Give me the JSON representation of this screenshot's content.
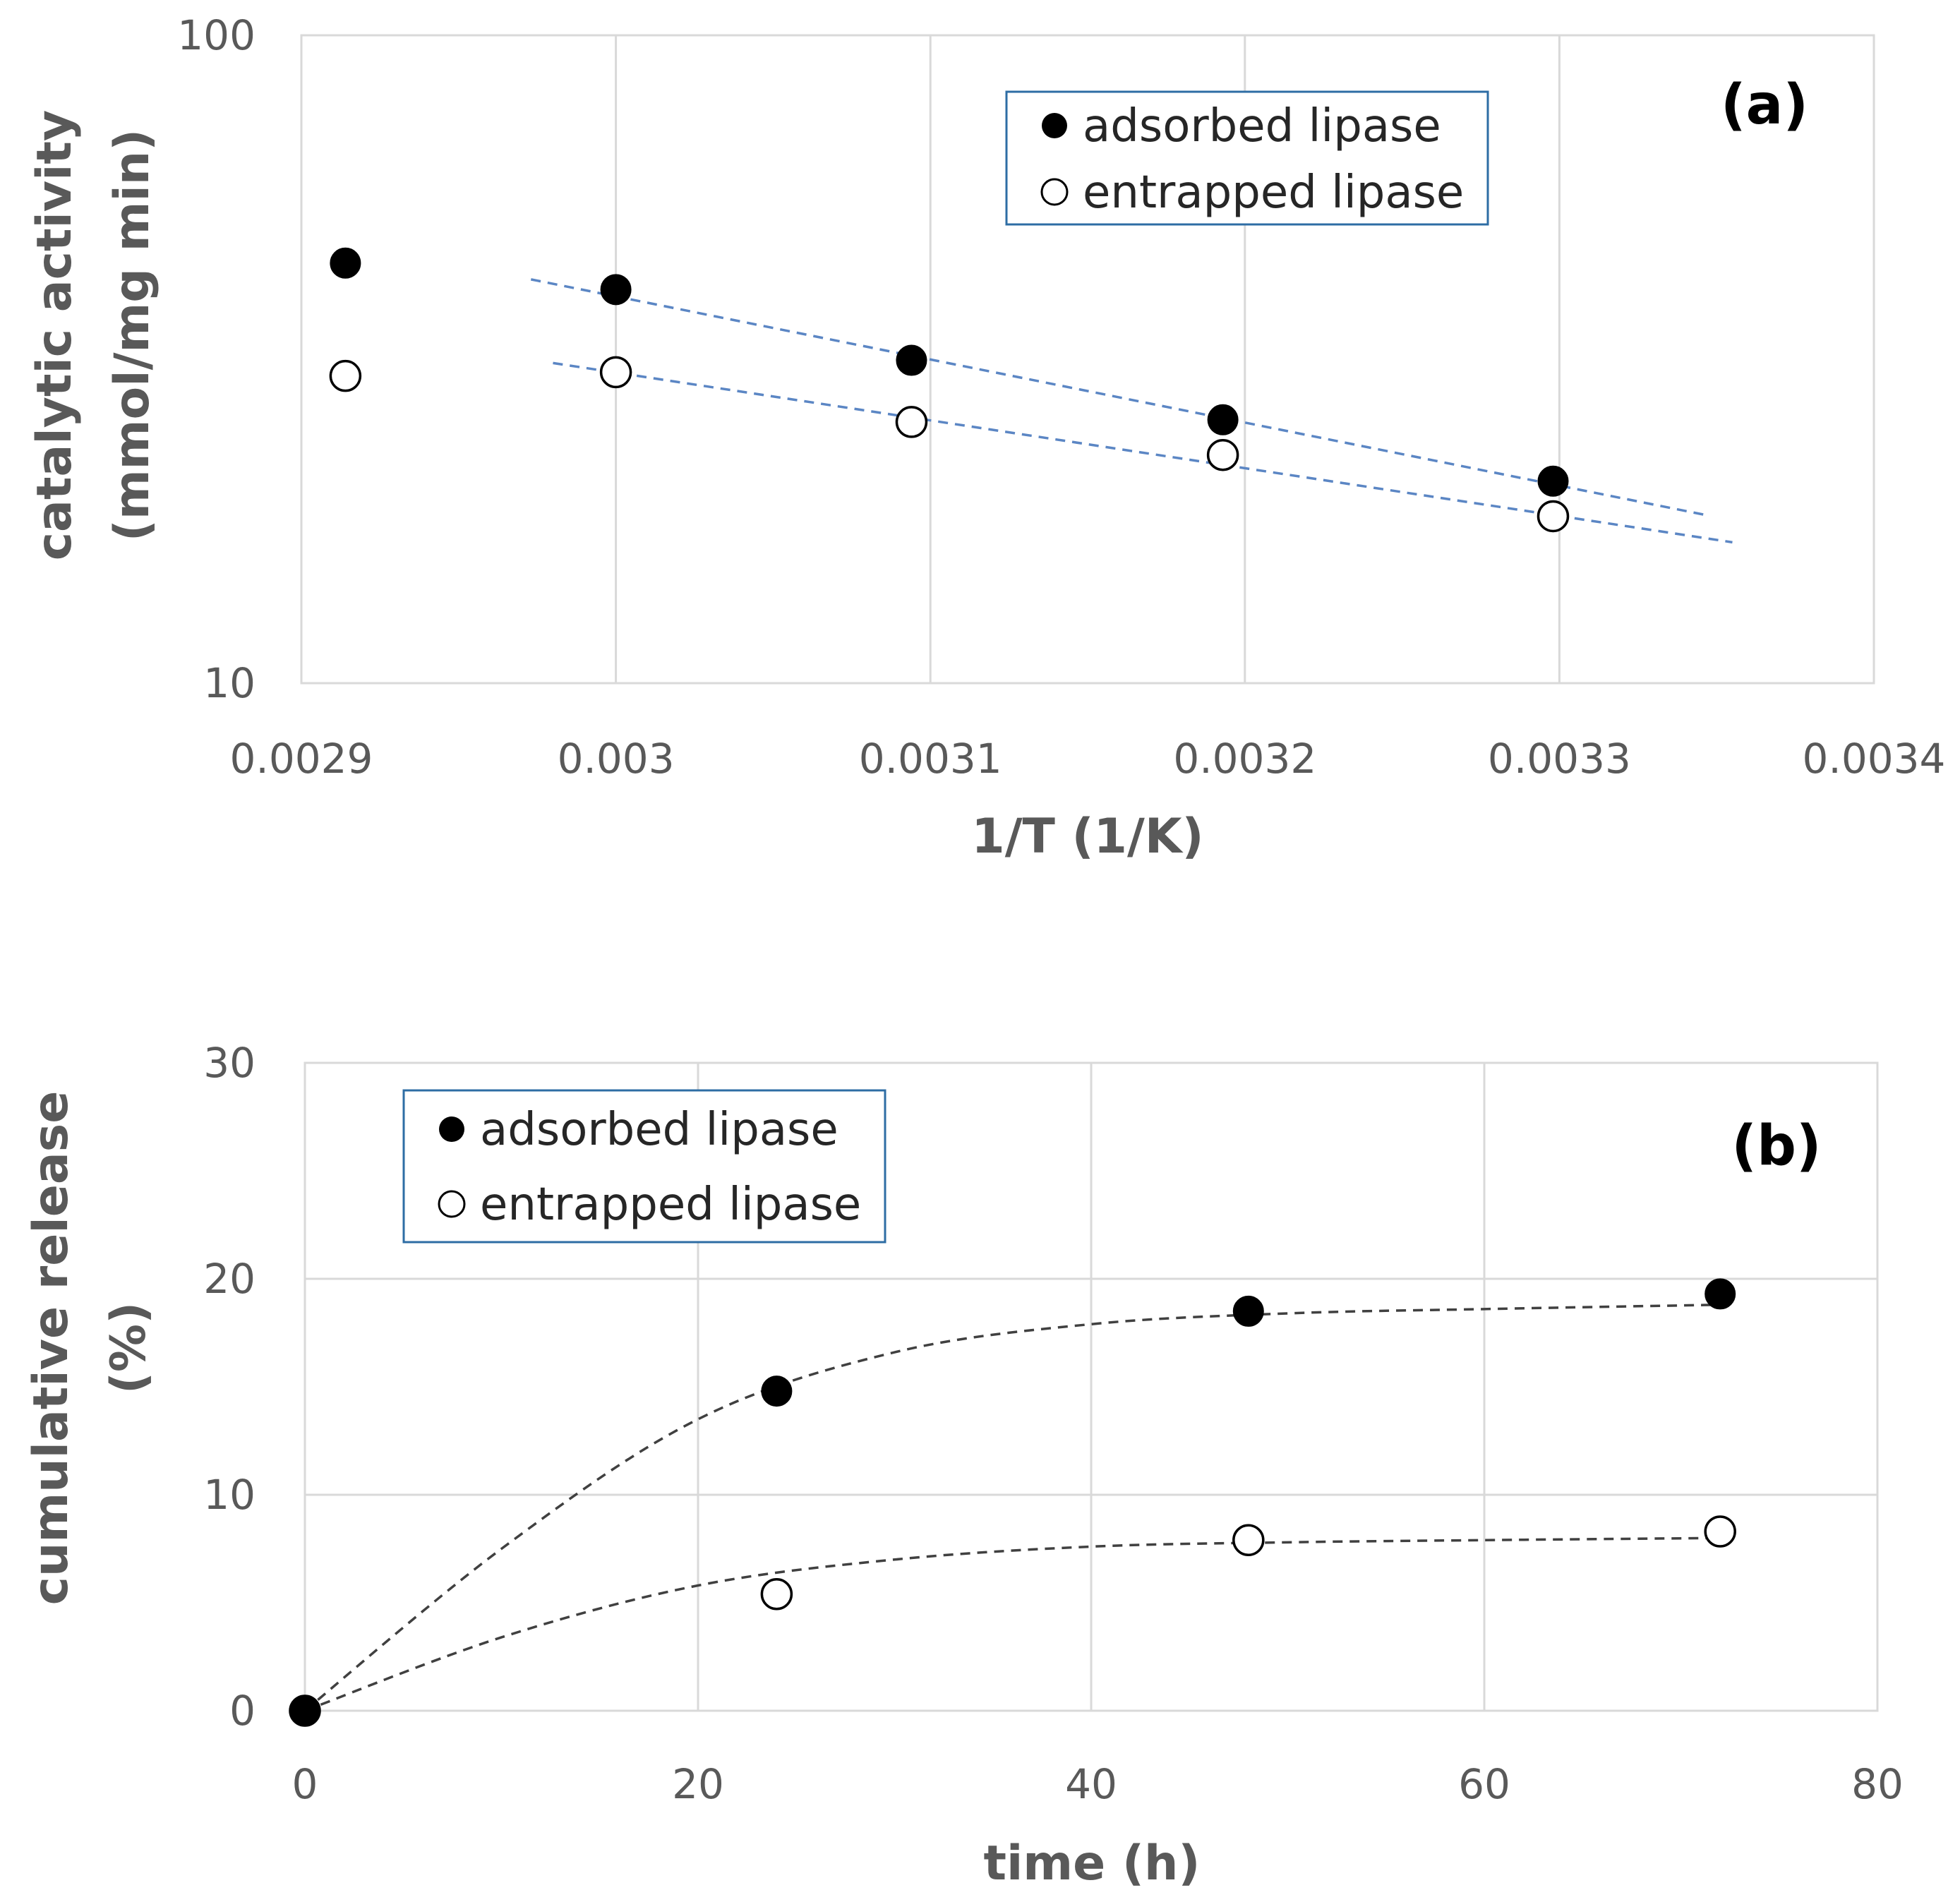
{
  "colors": {
    "grid": "#d9d9d9",
    "axis_text": "#595959",
    "legend_border": "#2e6da4",
    "trend_a": "#5b86c4",
    "trend_b": "#404040",
    "marker": "#000000"
  },
  "chart_data": [
    {
      "type": "scatter",
      "panel_label": "(a)",
      "xlabel": "1/T (1/K)",
      "ylabel": [
        "catalytic activity",
        "(mmol/mg min)"
      ],
      "xlim": [
        0.0029,
        0.0034
      ],
      "ylim": [
        10,
        100
      ],
      "yscale": "log",
      "xticks": [
        0.0029,
        0.003,
        0.0031,
        0.0032,
        0.0033,
        0.0034
      ],
      "xtick_labels": [
        "0.0029",
        "0.003",
        "0.0031",
        "0.0032",
        "0.0033",
        "0.0034"
      ],
      "yticks": [
        10,
        100
      ],
      "ytick_labels": [
        "10",
        "100"
      ],
      "grid": true,
      "legend_placement": "top-center",
      "series": [
        {
          "name": "adsorbed lipase",
          "marker": "filled",
          "x": [
            0.002914,
            0.003,
            0.003094,
            0.003193,
            0.003298
          ],
          "y": [
            44.5,
            40.5,
            31.5,
            25.5,
            20.5
          ],
          "trend": {
            "style": "dashed",
            "x": [
              0.002973,
              0.003346
            ],
            "y": [
              42.0,
              18.2
            ]
          }
        },
        {
          "name": "entrapped lipase",
          "marker": "open",
          "x": [
            0.002914,
            0.003,
            0.003094,
            0.003193,
            0.003298
          ],
          "y": [
            29.8,
            30.2,
            25.3,
            22.5,
            18.1
          ],
          "trend": {
            "style": "dashed",
            "x": [
              0.00298,
              0.003355
            ],
            "y": [
              31.2,
              16.5
            ]
          }
        }
      ]
    },
    {
      "type": "scatter",
      "panel_label": "(b)",
      "xlabel": "time (h)",
      "ylabel": [
        "cumulative release",
        "(%)"
      ],
      "xlim": [
        0,
        80
      ],
      "ylim": [
        0,
        30
      ],
      "xticks": [
        0,
        20,
        40,
        60,
        80
      ],
      "xtick_labels": [
        "0",
        "20",
        "40",
        "60",
        "80"
      ],
      "yticks": [
        0,
        10,
        20,
        30
      ],
      "ytick_labels": [
        "0",
        "10",
        "20",
        "30"
      ],
      "grid": true,
      "legend_placement": "top-left",
      "series": [
        {
          "name": "adsorbed lipase",
          "marker": "filled",
          "x": [
            0,
            24,
            48,
            72
          ],
          "y": [
            0,
            14.8,
            18.5,
            19.3
          ],
          "trend": {
            "style": "dashed",
            "x": [
              0,
              10,
              20,
              30,
              40,
              50,
              60,
              72
            ],
            "y": [
              0,
              7.5,
              13.5,
              16.6,
              17.9,
              18.4,
              18.6,
              18.8
            ]
          }
        },
        {
          "name": "entrapped lipase",
          "marker": "open",
          "x": [
            0,
            24,
            48,
            72
          ],
          "y": [
            0,
            5.4,
            7.9,
            8.3
          ],
          "trend": {
            "style": "dashed",
            "x": [
              0,
              10,
              20,
              30,
              40,
              50,
              60,
              72
            ],
            "y": [
              0,
              3.4,
              5.8,
              7.0,
              7.6,
              7.8,
              7.9,
              8.0
            ]
          }
        }
      ]
    }
  ]
}
